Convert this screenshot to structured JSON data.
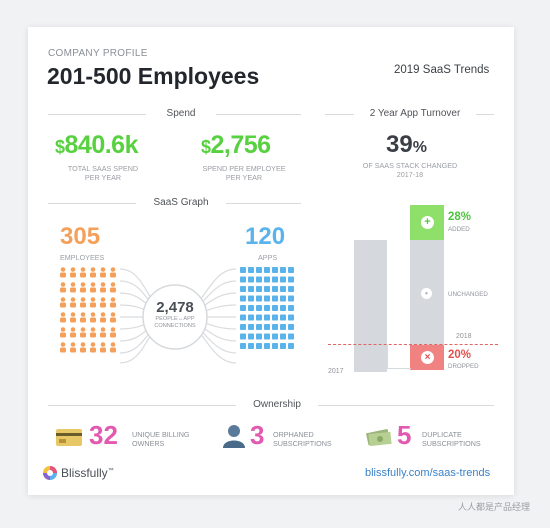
{
  "header": {
    "kicker": "COMPANY PROFILE",
    "title": "201-500 Employees",
    "trends_label": "2019 SaaS Trends"
  },
  "spend": {
    "section_label": "Spend",
    "total_currency": "$",
    "total_value": "840.6k",
    "total_caption_1": "TOTAL SAAS SPEND",
    "total_caption_2": "PER YEAR",
    "per_employee_currency": "$",
    "per_employee_value": "2,756",
    "per_employee_caption_1": "SPEND PER EMPLOYEE",
    "per_employee_caption_2": "PER YEAR"
  },
  "turnover": {
    "section_label": "2 Year App Turnover",
    "value": "39",
    "unit": "%",
    "caption_1": "OF SAAS STACK CHANGED",
    "caption_2": "2017-18",
    "added_pct": "28%",
    "added_label": "ADDED",
    "unchanged_label": "UNCHANGED",
    "dropped_pct": "20%",
    "dropped_label": "DROPPED",
    "year_2017": "2017",
    "year_2018": "2018",
    "colors": {
      "added": "#8fe06a",
      "dropped": "#f08282",
      "bar": "#d5d9dd"
    }
  },
  "graph": {
    "section_label": "SaaS Graph",
    "employees_value": "305",
    "employees_label": "EMPLOYEES",
    "apps_value": "120",
    "apps_label": "APPS",
    "connections_value": "2,478",
    "connections_label_1": "PEOPLE↔APP",
    "connections_label_2": "CONNECTIONS",
    "colors": {
      "employees": "#f4a05a",
      "apps": "#5ab3ea"
    }
  },
  "ownership": {
    "section_label": "Ownership",
    "items": [
      {
        "icon": "credit-card-icon",
        "value": "32",
        "caption_1": "UNIQUE BILLING",
        "caption_2": "OWNERS",
        "color": "#e25ab0"
      },
      {
        "icon": "person-silhouette-icon",
        "value": "3",
        "caption_1": "ORPHANED",
        "caption_2": "SUBSCRIPTIONS",
        "color": "#e25ab0"
      },
      {
        "icon": "money-stack-icon",
        "value": "5",
        "caption_1": "DUPLICATE",
        "caption_2": "SUBSCRIPTIONS",
        "color": "#e25ab0"
      }
    ]
  },
  "footer": {
    "brand": "Blissfully",
    "tm": "™",
    "url": "blissfully.com/saas-trends",
    "watermark": "人人都是产品经理"
  }
}
